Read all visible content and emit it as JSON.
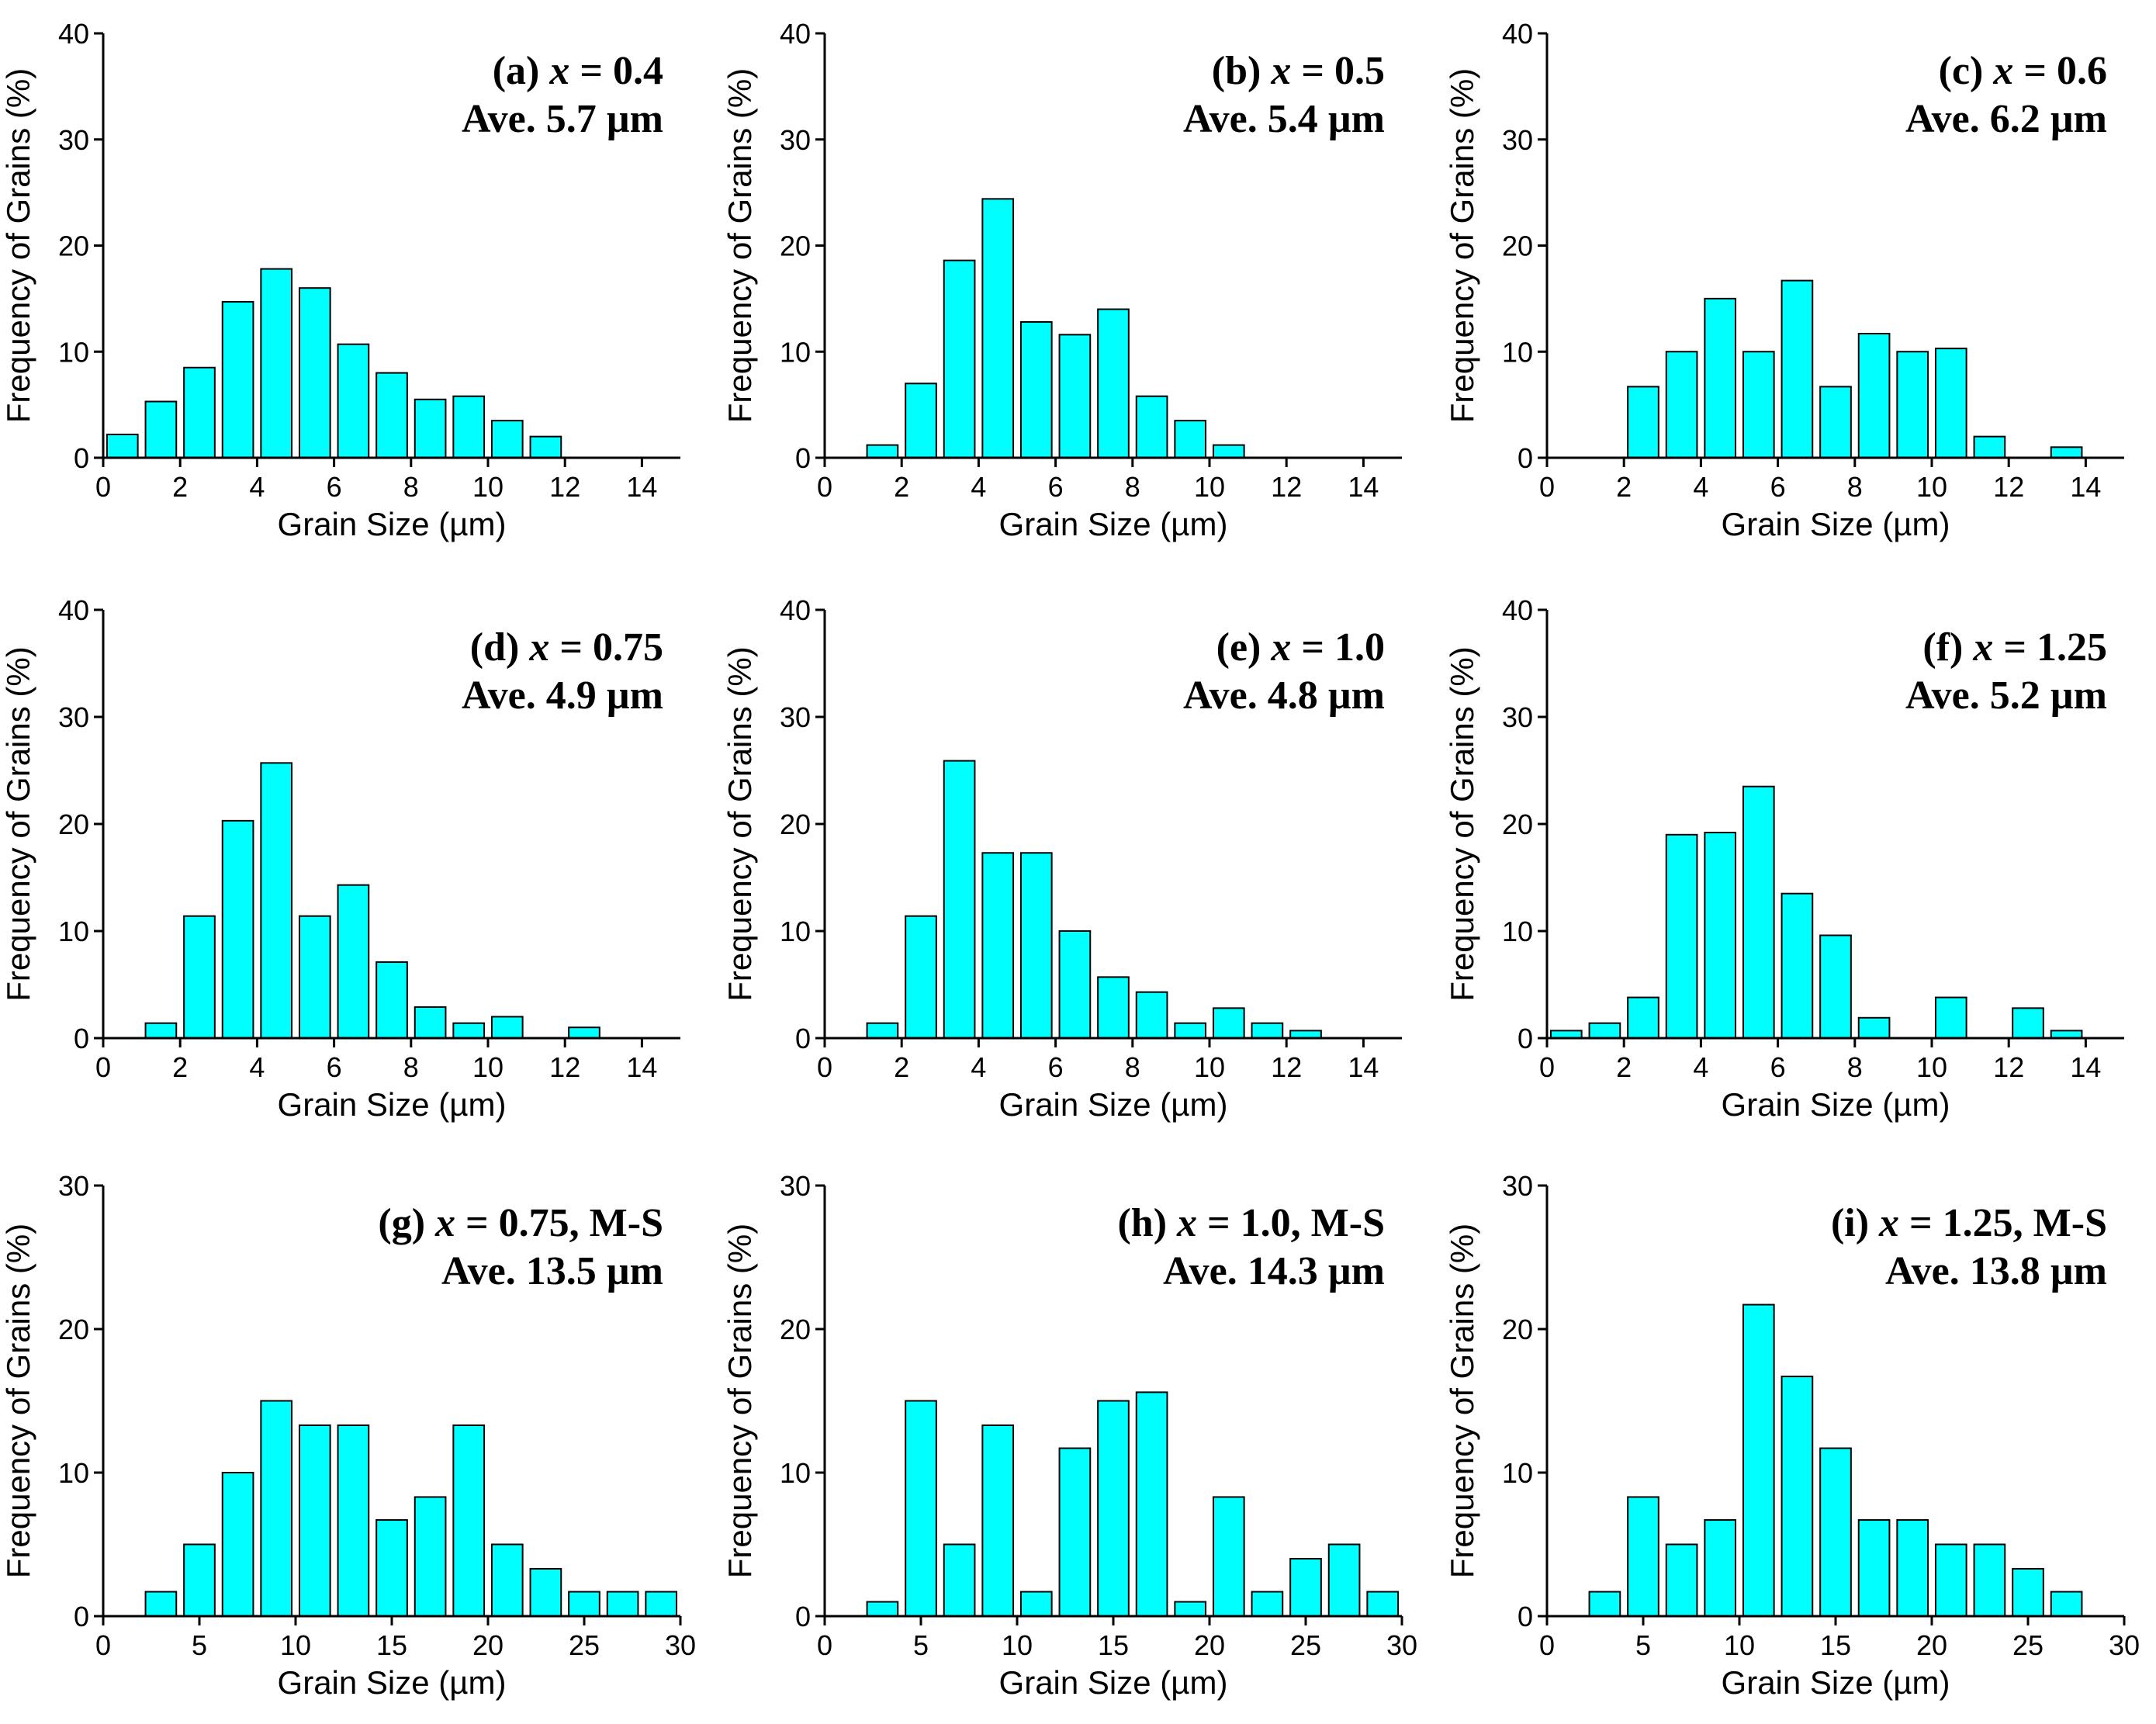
{
  "bar_color": "#00FFFF",
  "chart_data": [
    {
      "type": "bar",
      "panel_label": "(a)",
      "condition": "0.4",
      "condition_suffix": "",
      "average": "Ave. 5.7 µm",
      "xlabel": "Grain Size (µm)",
      "ylabel": "Frequency of Grains (%)",
      "xlim": [
        0,
        15
      ],
      "ylim": [
        0,
        40
      ],
      "xticks": [
        0,
        2,
        4,
        6,
        8,
        10,
        12,
        14
      ],
      "yticks": [
        0,
        10,
        20,
        30,
        40
      ],
      "bin_width": 1,
      "x": [
        0.5,
        1.5,
        2.5,
        3.5,
        4.5,
        5.5,
        6.5,
        7.5,
        8.5,
        9.5,
        10.5,
        11.5
      ],
      "values": [
        2.2,
        5.3,
        8.5,
        14.7,
        17.8,
        16.0,
        10.7,
        8.0,
        5.5,
        5.8,
        3.5,
        2.0
      ]
    },
    {
      "type": "bar",
      "panel_label": "(b)",
      "condition": "0.5",
      "condition_suffix": "",
      "average": "Ave. 5.4 µm",
      "xlabel": "Grain Size (µm)",
      "ylabel": "Frequency of Grains (%)",
      "xlim": [
        0,
        15
      ],
      "ylim": [
        0,
        40
      ],
      "xticks": [
        0,
        2,
        4,
        6,
        8,
        10,
        12,
        14
      ],
      "yticks": [
        0,
        10,
        20,
        30,
        40
      ],
      "bin_width": 1,
      "x": [
        1.5,
        2.5,
        3.5,
        4.5,
        5.5,
        6.5,
        7.5,
        8.5,
        9.5,
        10.5
      ],
      "values": [
        1.2,
        7.0,
        18.6,
        24.4,
        12.8,
        11.6,
        14.0,
        5.8,
        3.5,
        1.2
      ]
    },
    {
      "type": "bar",
      "panel_label": "(c)",
      "condition": "0.6",
      "condition_suffix": "",
      "average": "Ave. 6.2 µm",
      "xlabel": "Grain Size (µm)",
      "ylabel": "Frequency of Grains (%)",
      "xlim": [
        0,
        15
      ],
      "ylim": [
        0,
        40
      ],
      "xticks": [
        0,
        2,
        4,
        6,
        8,
        10,
        12,
        14
      ],
      "yticks": [
        0,
        10,
        20,
        30,
        40
      ],
      "bin_width": 1,
      "x": [
        2.5,
        3.5,
        4.5,
        5.5,
        6.5,
        7.5,
        8.5,
        9.5,
        10.5,
        11.5,
        13.5
      ],
      "values": [
        6.7,
        10.0,
        15.0,
        10.0,
        16.7,
        6.7,
        11.7,
        10.0,
        10.3,
        2.0,
        1.0
      ]
    },
    {
      "type": "bar",
      "panel_label": "(d)",
      "condition": "0.75",
      "condition_suffix": "",
      "average": "Ave. 4.9 µm",
      "xlabel": "Grain Size (µm)",
      "ylabel": "Frequency of Grains (%)",
      "xlim": [
        0,
        15
      ],
      "ylim": [
        0,
        40
      ],
      "xticks": [
        0,
        2,
        4,
        6,
        8,
        10,
        12,
        14
      ],
      "yticks": [
        0,
        10,
        20,
        30,
        40
      ],
      "bin_width": 1,
      "x": [
        1.5,
        2.5,
        3.5,
        4.5,
        5.5,
        6.5,
        7.5,
        8.5,
        9.5,
        10.5,
        12.5
      ],
      "values": [
        1.4,
        11.4,
        20.3,
        25.7,
        11.4,
        14.3,
        7.1,
        2.9,
        1.4,
        2.0,
        1.0
      ]
    },
    {
      "type": "bar",
      "panel_label": "(e)",
      "condition": "1.0",
      "condition_suffix": "",
      "average": "Ave. 4.8 µm",
      "xlabel": "Grain Size (µm)",
      "ylabel": "Frequency of Grains (%)",
      "xlim": [
        0,
        15
      ],
      "ylim": [
        0,
        40
      ],
      "xticks": [
        0,
        2,
        4,
        6,
        8,
        10,
        12,
        14
      ],
      "yticks": [
        0,
        10,
        20,
        30,
        40
      ],
      "bin_width": 1,
      "x": [
        1.5,
        2.5,
        3.5,
        4.5,
        5.5,
        6.5,
        7.5,
        8.5,
        9.5,
        10.5,
        11.5,
        12.5
      ],
      "values": [
        1.4,
        11.4,
        25.9,
        17.3,
        17.3,
        10.0,
        5.7,
        4.3,
        1.4,
        2.8,
        1.4,
        0.7
      ]
    },
    {
      "type": "bar",
      "panel_label": "(f)",
      "condition": "1.25",
      "condition_suffix": "",
      "average": "Ave. 5.2 µm",
      "xlabel": "Grain Size (µm)",
      "ylabel": "Frequency of Grains (%)",
      "xlim": [
        0,
        15
      ],
      "ylim": [
        0,
        40
      ],
      "xticks": [
        0,
        2,
        4,
        6,
        8,
        10,
        12,
        14
      ],
      "yticks": [
        0,
        10,
        20,
        30,
        40
      ],
      "bin_width": 1,
      "x": [
        0.5,
        1.5,
        2.5,
        3.5,
        4.5,
        5.5,
        6.5,
        7.5,
        8.5,
        10.5,
        12.5,
        13.5
      ],
      "values": [
        0.7,
        1.4,
        3.8,
        19.0,
        19.2,
        23.5,
        13.5,
        9.6,
        1.9,
        3.8,
        2.8,
        0.7
      ]
    },
    {
      "type": "bar",
      "panel_label": "(g)",
      "condition": "0.75",
      "condition_suffix": ", M-S",
      "average": "Ave. 13.5 µm",
      "xlabel": "Grain Size (µm)",
      "ylabel": "Frequency of Grains (%)",
      "xlim": [
        0,
        30
      ],
      "ylim": [
        0,
        30
      ],
      "xticks": [
        0,
        5,
        10,
        15,
        20,
        25,
        30
      ],
      "yticks": [
        0,
        10,
        20,
        30
      ],
      "bin_width": 2,
      "x": [
        3,
        5,
        7,
        9,
        11,
        13,
        15,
        17,
        19,
        21,
        23,
        25,
        27,
        29
      ],
      "values": [
        1.7,
        5.0,
        10.0,
        15.0,
        13.3,
        13.3,
        6.7,
        8.3,
        13.3,
        5.0,
        3.3,
        1.7,
        1.7,
        1.7
      ]
    },
    {
      "type": "bar",
      "panel_label": "(h)",
      "condition": "1.0",
      "condition_suffix": ", M-S",
      "average": "Ave. 14.3 µm",
      "xlabel": "Grain Size (µm)",
      "ylabel": "Frequency of Grains (%)",
      "xlim": [
        0,
        30
      ],
      "ylim": [
        0,
        30
      ],
      "xticks": [
        0,
        5,
        10,
        15,
        20,
        25,
        30
      ],
      "yticks": [
        0,
        10,
        20,
        30
      ],
      "bin_width": 2,
      "x": [
        3,
        5,
        7,
        9,
        11,
        13,
        15,
        17,
        19,
        21,
        23,
        25,
        27,
        29
      ],
      "values": [
        1.0,
        15.0,
        5.0,
        13.3,
        1.7,
        11.7,
        15.0,
        15.6,
        1.0,
        8.3,
        1.7,
        4.0,
        5.0,
        1.7
      ]
    },
    {
      "type": "bar",
      "panel_label": "(i)",
      "condition": "1.25",
      "condition_suffix": ", M-S",
      "average": "Ave. 13.8 µm",
      "xlabel": "Grain Size (µm)",
      "ylabel": "Frequency of Grains (%)",
      "xlim": [
        0,
        30
      ],
      "ylim": [
        0,
        30
      ],
      "xticks": [
        0,
        5,
        10,
        15,
        20,
        25,
        30
      ],
      "yticks": [
        0,
        10,
        20,
        30
      ],
      "bin_width": 2,
      "x": [
        3,
        5,
        7,
        9,
        11,
        13,
        15,
        17,
        19,
        21,
        23,
        25,
        27
      ],
      "values": [
        1.7,
        8.3,
        5.0,
        6.7,
        21.7,
        16.7,
        11.7,
        6.7,
        6.7,
        5.0,
        5.0,
        3.3,
        1.7
      ]
    }
  ]
}
